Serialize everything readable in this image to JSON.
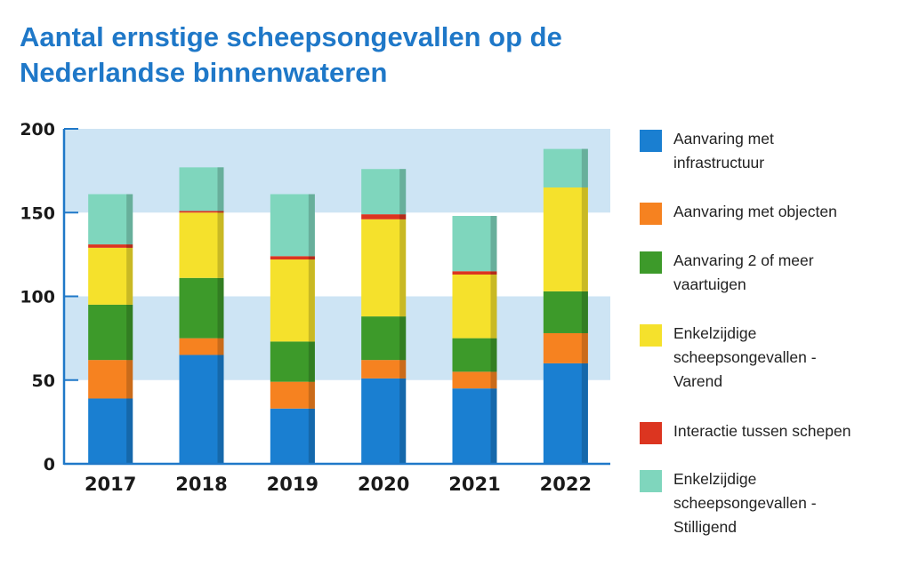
{
  "title_lines": [
    "Aantal ernstige scheepsongevallen op de",
    "Nederlandse binnenwateren"
  ],
  "colors": {
    "band": "#cde4f4",
    "axis": "#1f78c8",
    "title": "#1f78c8"
  },
  "chart_data": {
    "type": "bar",
    "stacked": true,
    "title": "Aantal ernstige scheepsongevallen op de Nederlandse binnenwateren",
    "xlabel": "",
    "ylabel": "",
    "ylim": [
      0,
      200
    ],
    "yticks": [
      0,
      50,
      100,
      150,
      200
    ],
    "grid": false,
    "legend_position": "right",
    "categories": [
      "2017",
      "2018",
      "2019",
      "2020",
      "2021",
      "2022"
    ],
    "series": [
      {
        "name_lines": [
          "Aanvaring met",
          "infrastructuur"
        ],
        "color": "#1a7fd1",
        "values": [
          39,
          65,
          33,
          51,
          45,
          60
        ]
      },
      {
        "name_lines": [
          "Aanvaring met objecten"
        ],
        "color": "#f68220",
        "values": [
          23,
          10,
          16,
          11,
          10,
          18
        ]
      },
      {
        "name_lines": [
          "Aanvaring 2 of meer",
          "vaartuigen"
        ],
        "color": "#3d9a2a",
        "values": [
          33,
          36,
          24,
          26,
          20,
          25
        ]
      },
      {
        "name_lines": [
          "Enkelzijdige",
          "scheepsongevallen -",
          "Varend"
        ],
        "color": "#f5e12c",
        "values": [
          34,
          39,
          49,
          58,
          38,
          62
        ]
      },
      {
        "name_lines": [
          "Interactie tussen schepen"
        ],
        "color": "#dc3520",
        "values": [
          2,
          1,
          2,
          3,
          2,
          0
        ]
      },
      {
        "name_lines": [
          "Enkelzijdige",
          "scheepsongevallen -",
          "Stilligend"
        ],
        "color": "#7fd6bd",
        "values": [
          30,
          26,
          37,
          27,
          33,
          23
        ]
      }
    ]
  }
}
